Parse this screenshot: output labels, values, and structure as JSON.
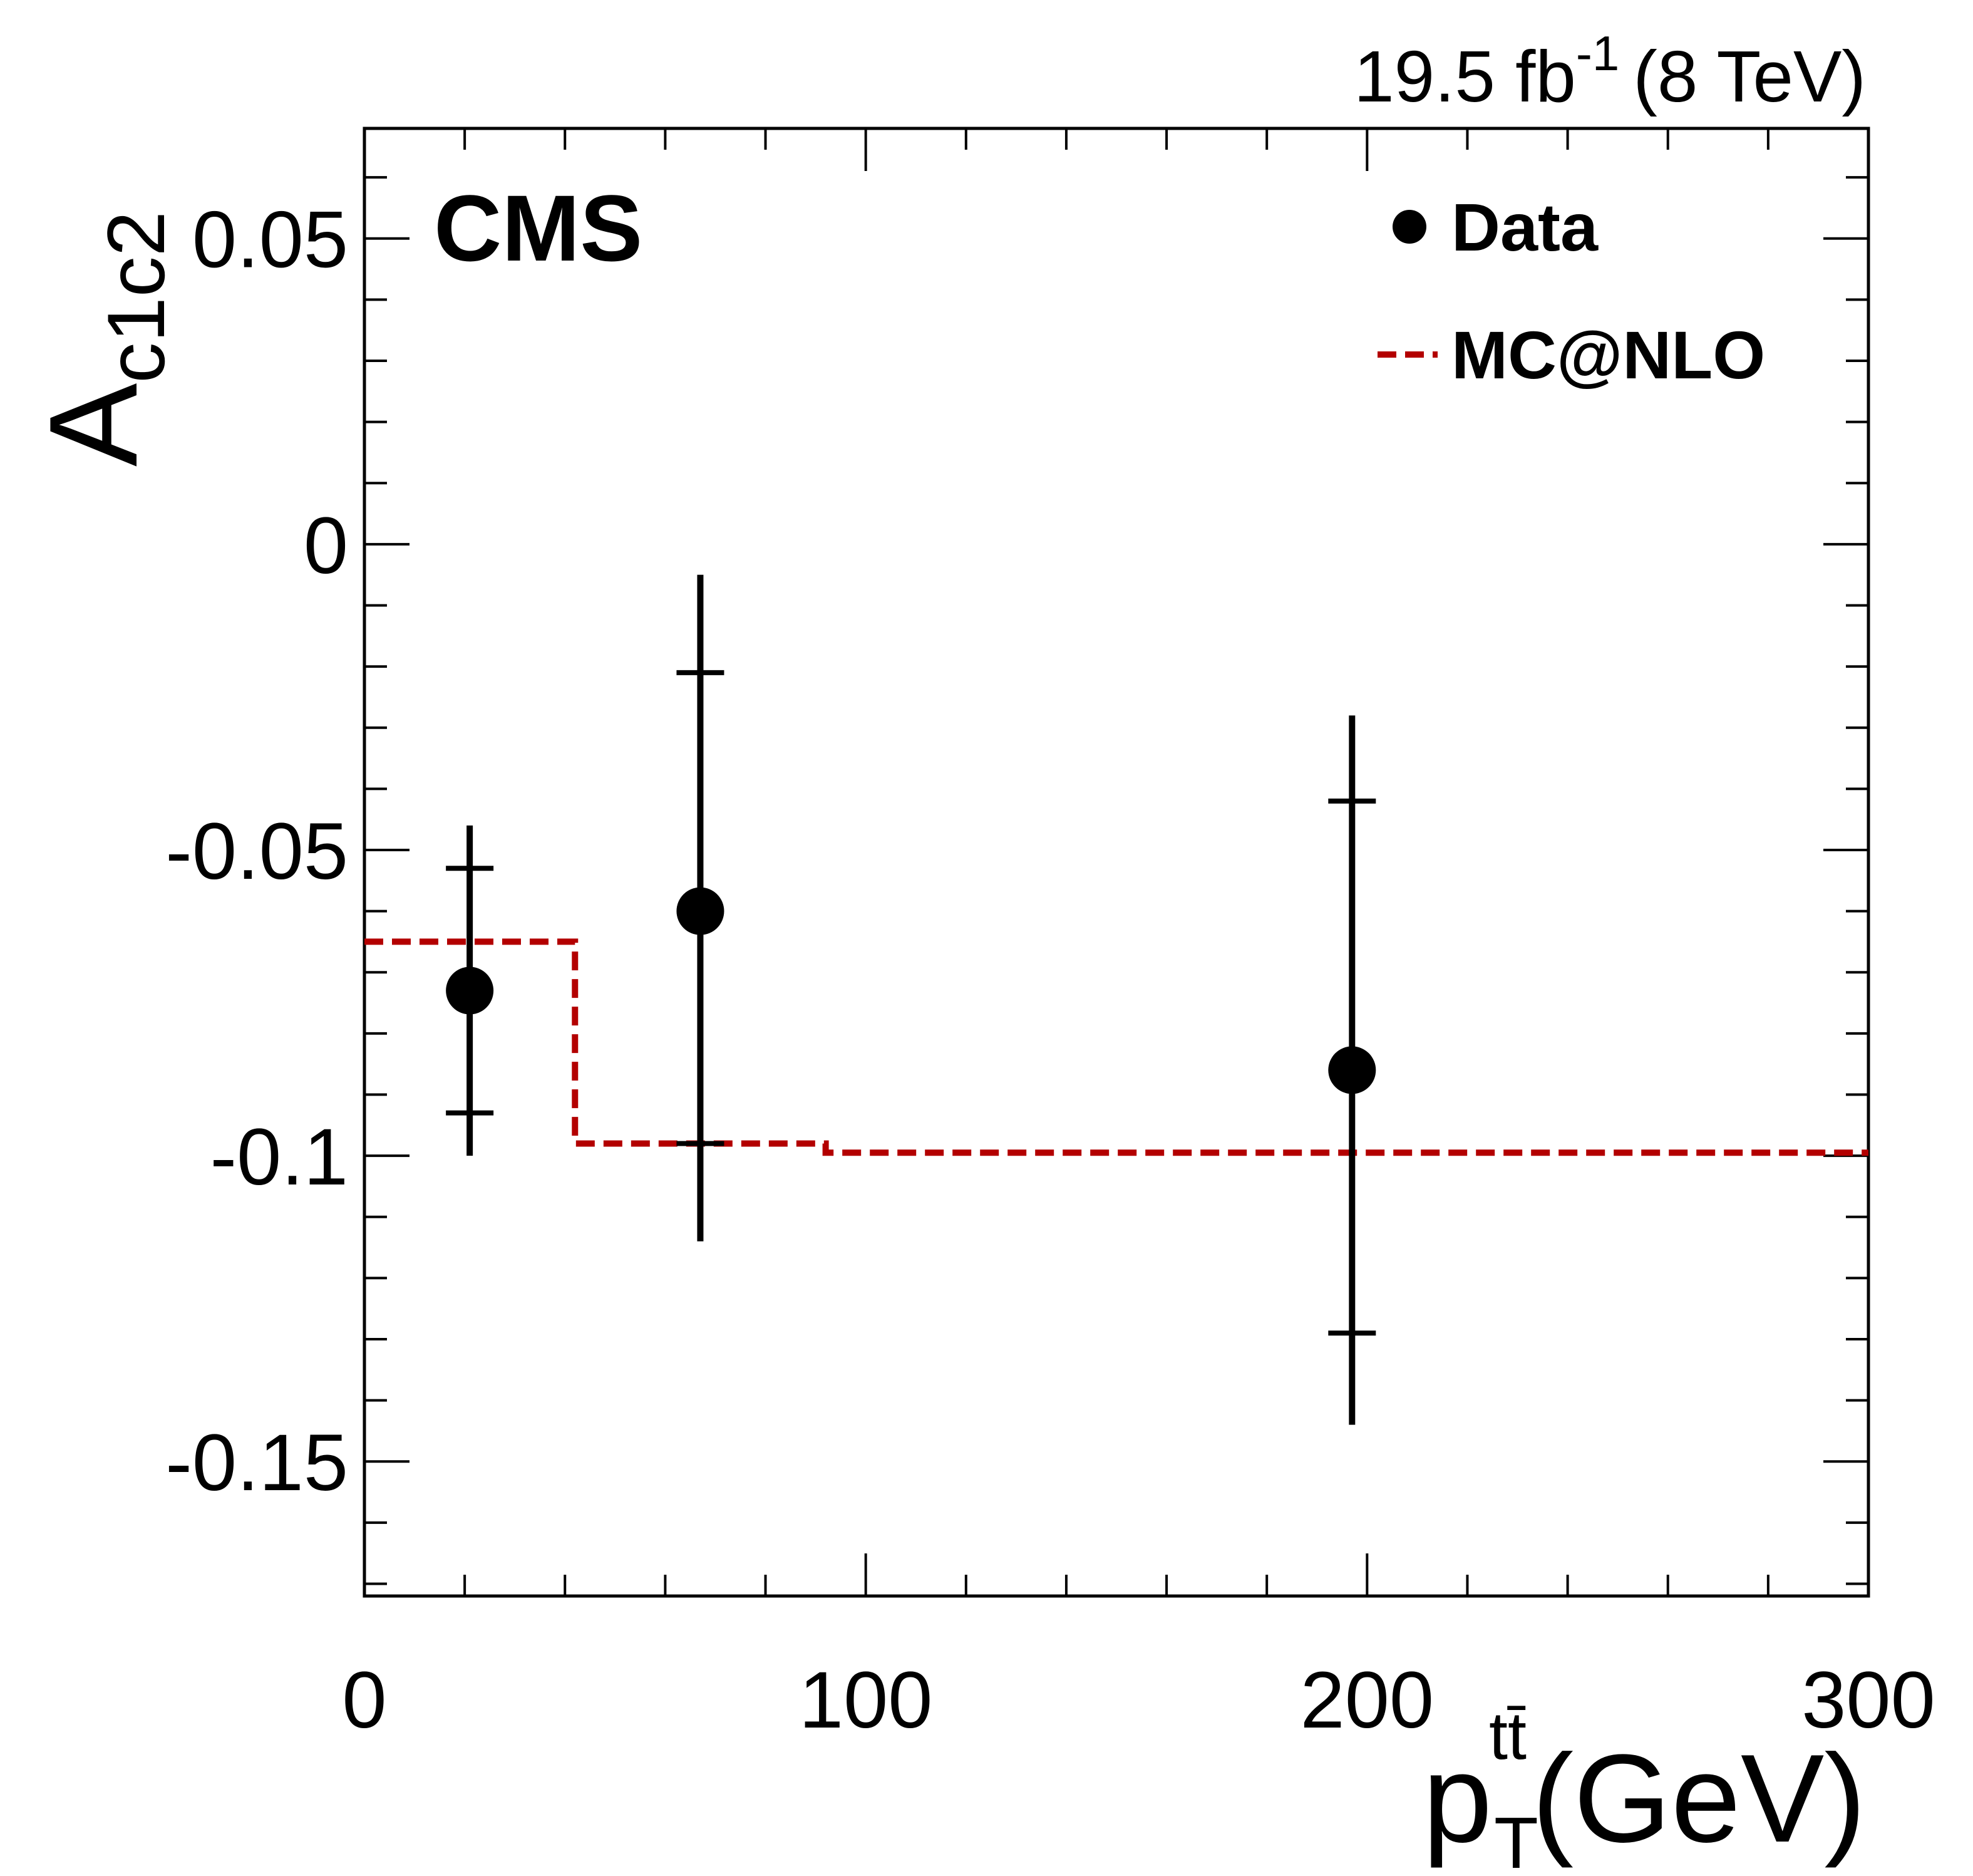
{
  "chart_data": {
    "type": "scatter",
    "experiment": "CMS",
    "lumi_value": "19.5 fb",
    "lumi_exponent": "-1",
    "lumi_energy": "(8 TeV)",
    "ylabel_main": "A",
    "ylabel_sub": "c1c2",
    "xlabel_main": "p",
    "xlabel_sub": "T",
    "xlabel_sup": "tt̄",
    "xlabel_unit": "(GeV)",
    "xlim": [
      0,
      300
    ],
    "ylim": [
      -0.172,
      0.068
    ],
    "x_ticks": [
      0,
      100,
      200,
      300
    ],
    "x_tick_labels": [
      "0",
      "100",
      "200",
      "300"
    ],
    "y_ticks": [
      0.05,
      0,
      -0.05,
      -0.1,
      -0.15
    ],
    "y_tick_labels": [
      "0.05",
      "0",
      "-0.05",
      "-0.1",
      "-0.15"
    ],
    "legend": [
      {
        "label": "Data",
        "style": "marker"
      },
      {
        "label": "MC@NLO",
        "style": "dashed"
      }
    ],
    "colors": {
      "data": "#000000",
      "mc": "#b30000"
    },
    "series": [
      {
        "name": "Data",
        "x": [
          21,
          67,
          197
        ],
        "y": [
          -0.073,
          -0.06,
          -0.086
        ],
        "stat_up": [
          -0.053,
          -0.021,
          -0.042
        ],
        "stat_down": [
          -0.093,
          -0.098,
          -0.129
        ],
        "tot_up": [
          -0.046,
          -0.005,
          -0.028
        ],
        "tot_down": [
          -0.1,
          -0.114,
          -0.144
        ]
      },
      {
        "name": "MC@NLO",
        "type": "step",
        "bin_edges": [
          0,
          42,
          92,
          300
        ],
        "values": [
          -0.065,
          -0.098,
          -0.0995
        ]
      }
    ]
  }
}
